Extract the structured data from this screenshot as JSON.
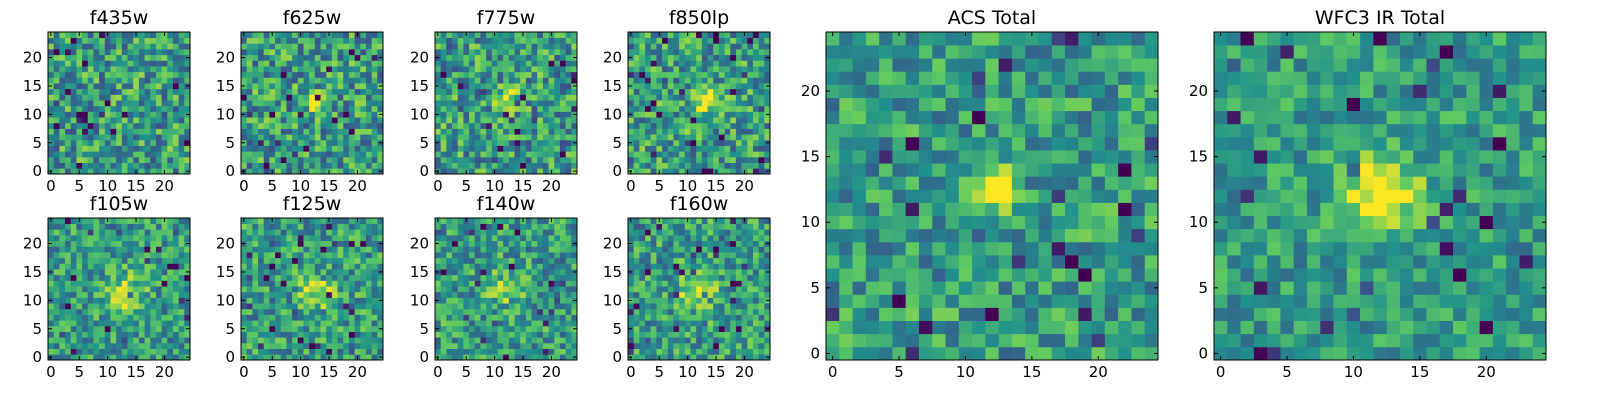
{
  "figure": {
    "colormap": "viridis",
    "colormap_stops": [
      "#440154",
      "#3b528b",
      "#21918c",
      "#5ec962",
      "#fde725"
    ]
  },
  "chart_data": [
    {
      "type": "heatmap",
      "title": "f435w",
      "grid_size": 25,
      "xlim": [
        -0.5,
        24.5
      ],
      "ylim": [
        -0.5,
        24.5
      ],
      "xticks": [
        0,
        5,
        10,
        15,
        20
      ],
      "yticks": [
        0,
        5,
        10,
        15,
        20
      ],
      "source_center": null,
      "source_strength": 0.0,
      "source_sigma": 2.0,
      "noise_level": 0.3,
      "seed": 11
    },
    {
      "type": "heatmap",
      "title": "f625w",
      "grid_size": 25,
      "xlim": [
        -0.5,
        24.5
      ],
      "ylim": [
        -0.5,
        24.5
      ],
      "xticks": [
        0,
        5,
        10,
        15,
        20
      ],
      "yticks": [
        0,
        5,
        10,
        15,
        20
      ],
      "source_center": [
        12,
        12
      ],
      "source_strength": 0.65,
      "source_sigma": 1.2,
      "noise_level": 0.3,
      "seed": 23
    },
    {
      "type": "heatmap",
      "title": "f775w",
      "grid_size": 25,
      "xlim": [
        -0.5,
        24.5
      ],
      "ylim": [
        -0.5,
        24.5
      ],
      "xticks": [
        0,
        5,
        10,
        15,
        20
      ],
      "yticks": [
        0,
        5,
        10,
        15,
        20
      ],
      "source_center": [
        12,
        12.5
      ],
      "source_strength": 0.5,
      "source_sigma": 1.4,
      "noise_level": 0.3,
      "seed": 37
    },
    {
      "type": "heatmap",
      "title": "f850lp",
      "grid_size": 25,
      "xlim": [
        -0.5,
        24.5
      ],
      "ylim": [
        -0.5,
        24.5
      ],
      "xticks": [
        0,
        5,
        10,
        15,
        20
      ],
      "yticks": [
        0,
        5,
        10,
        15,
        20
      ],
      "source_center": [
        13,
        12
      ],
      "source_strength": 0.5,
      "source_sigma": 1.5,
      "noise_level": 0.3,
      "seed": 41
    },
    {
      "type": "heatmap",
      "title": "f105w",
      "grid_size": 25,
      "xlim": [
        -0.5,
        24.5
      ],
      "ylim": [
        -0.5,
        24.5
      ],
      "xticks": [
        0,
        5,
        10,
        15,
        20
      ],
      "yticks": [
        0,
        5,
        10,
        15,
        20
      ],
      "source_center": [
        13,
        11
      ],
      "source_strength": 0.35,
      "source_sigma": 2.5,
      "noise_level": 0.24,
      "seed": 53
    },
    {
      "type": "heatmap",
      "title": "f125w",
      "grid_size": 25,
      "xlim": [
        -0.5,
        24.5
      ],
      "ylim": [
        -0.5,
        24.5
      ],
      "xticks": [
        0,
        5,
        10,
        15,
        20
      ],
      "yticks": [
        0,
        5,
        10,
        15,
        20
      ],
      "source_center": [
        13,
        12
      ],
      "source_strength": 0.45,
      "source_sigma": 2.0,
      "noise_level": 0.26,
      "seed": 67
    },
    {
      "type": "heatmap",
      "title": "f140w",
      "grid_size": 25,
      "xlim": [
        -0.5,
        24.5
      ],
      "ylim": [
        -0.5,
        24.5
      ],
      "xticks": [
        0,
        5,
        10,
        15,
        20
      ],
      "yticks": [
        0,
        5,
        10,
        15,
        20
      ],
      "source_center": [
        12,
        12
      ],
      "source_strength": 0.25,
      "source_sigma": 2.2,
      "noise_level": 0.26,
      "seed": 71
    },
    {
      "type": "heatmap",
      "title": "f160w",
      "grid_size": 25,
      "xlim": [
        -0.5,
        24.5
      ],
      "ylim": [
        -0.5,
        24.5
      ],
      "xticks": [
        0,
        5,
        10,
        15,
        20
      ],
      "yticks": [
        0,
        5,
        10,
        15,
        20
      ],
      "source_center": [
        12,
        12
      ],
      "source_strength": 0.45,
      "source_sigma": 2.2,
      "noise_level": 0.26,
      "seed": 83
    },
    {
      "type": "heatmap",
      "title": "ACS Total",
      "grid_size": 25,
      "xlim": [
        -0.5,
        24.5
      ],
      "ylim": [
        -0.5,
        24.5
      ],
      "xticks": [
        0,
        5,
        10,
        15,
        20
      ],
      "yticks": [
        0,
        5,
        10,
        15,
        20
      ],
      "source_center": [
        12,
        12.5
      ],
      "source_strength": 0.75,
      "source_sigma": 1.1,
      "noise_level": 0.24,
      "seed": 97
    },
    {
      "type": "heatmap",
      "title": "WFC3 IR Total",
      "grid_size": 25,
      "xlim": [
        -0.5,
        24.5
      ],
      "ylim": [
        -0.5,
        24.5
      ],
      "xticks": [
        0,
        5,
        10,
        15,
        20
      ],
      "yticks": [
        0,
        5,
        10,
        15,
        20
      ],
      "source_center": [
        12,
        12
      ],
      "source_strength": 0.55,
      "source_sigma": 2.0,
      "noise_level": 0.2,
      "seed": 103
    }
  ]
}
